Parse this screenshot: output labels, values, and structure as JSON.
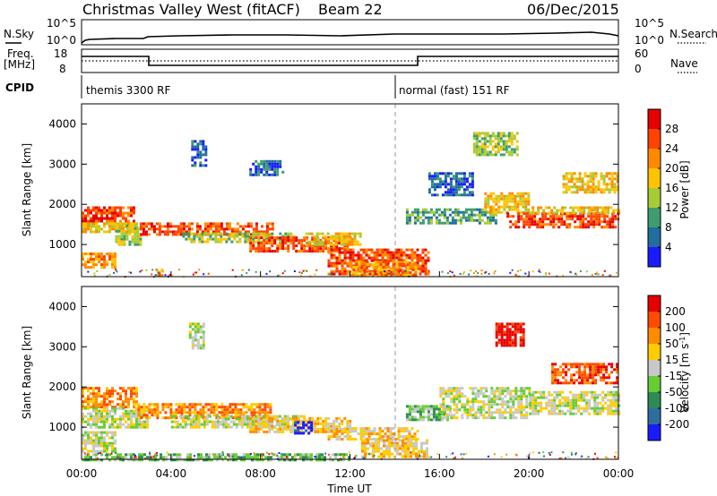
{
  "header": {
    "title": "Christmas Valley West (fitACF)",
    "beam": "Beam 22",
    "date": "06/Dec/2015"
  },
  "top_panels": {
    "nsky_label": "N.Sky",
    "nsearch_label": "N.Search",
    "left_ticks": [
      "10^5",
      "10^0"
    ],
    "right_ticks": [
      "10^5",
      "10^0"
    ],
    "freq_label_1": "Freq.",
    "freq_label_2": "[MHz]",
    "freq_ticks": [
      "18",
      "8"
    ],
    "nave_label": "Nave",
    "nave_ticks": [
      "60",
      "0"
    ],
    "cpid_label": "CPID",
    "cpid_1": "themis 3300 RF",
    "cpid_2": "normal (fast) 151 RF"
  },
  "colors": {
    "power": [
      "#1a1aff",
      "#1f6e9e",
      "#3e9c6e",
      "#a6cc33",
      "#ffc400",
      "#ff8a00",
      "#ff4200",
      "#e60000"
    ],
    "velocity": [
      "#e60000",
      "#ff4a00",
      "#ff8c00",
      "#ffcc00",
      "#c8c8c8",
      "#66cc33",
      "#2e8b57",
      "#2e6e9e",
      "#1a1aff"
    ],
    "freq_line": "#000000"
  },
  "chart_data": [
    {
      "type": "heatmap",
      "name": "power",
      "xlabel": "",
      "ylabel": "Slant Range [km]",
      "xlim": [
        0,
        24
      ],
      "ylim": [
        200,
        4500
      ],
      "yticks": [
        "4000",
        "3000",
        "2000",
        "1000"
      ],
      "colorbar_label": "Power [dB]",
      "colorbar_ticks": [
        "28",
        "24",
        "20",
        "16",
        "12",
        "8",
        "4"
      ],
      "bands": [
        {
          "t": [
            0.0,
            2.3
          ],
          "r": [
            1550,
            1950
          ],
          "level": 6
        },
        {
          "t": [
            0.0,
            2.5
          ],
          "r": [
            1300,
            1550
          ],
          "level": 4
        },
        {
          "t": [
            0.0,
            1.5
          ],
          "r": [
            400,
            800
          ],
          "level": 5
        },
        {
          "t": [
            1.5,
            2.6
          ],
          "r": [
            1000,
            1500
          ],
          "level": 3
        },
        {
          "t": [
            3.3,
            3.6
          ],
          "r": [
            250,
            400
          ],
          "level": 5
        },
        {
          "t": [
            2.6,
            8.5
          ],
          "r": [
            1250,
            1550
          ],
          "level": 6
        },
        {
          "t": [
            4.5,
            9.5
          ],
          "r": [
            1050,
            1300
          ],
          "level": 3
        },
        {
          "t": [
            7.5,
            12.0
          ],
          "r": [
            850,
            1200
          ],
          "level": 6
        },
        {
          "t": [
            10.0,
            12.5
          ],
          "r": [
            1000,
            1300
          ],
          "level": 4
        },
        {
          "t": [
            11.0,
            15.5
          ],
          "r": [
            250,
            900
          ],
          "level": 6
        },
        {
          "t": [
            12.0,
            15.0
          ],
          "r": [
            250,
            600
          ],
          "level": 5
        },
        {
          "t": [
            14.5,
            18.5
          ],
          "r": [
            1500,
            1900
          ],
          "level": 2
        },
        {
          "t": [
            15.5,
            17.5
          ],
          "r": [
            2200,
            2800
          ],
          "level": 1
        },
        {
          "t": [
            18.0,
            20.0
          ],
          "r": [
            1800,
            2300
          ],
          "level": 4
        },
        {
          "t": [
            19.0,
            24.0
          ],
          "r": [
            1400,
            1800
          ],
          "level": 6
        },
        {
          "t": [
            20.0,
            24.0
          ],
          "r": [
            1750,
            1950
          ],
          "level": 4
        },
        {
          "t": [
            21.5,
            24.0
          ],
          "r": [
            2300,
            2800
          ],
          "level": 4
        },
        {
          "t": [
            17.5,
            19.5
          ],
          "r": [
            3200,
            3800
          ],
          "level": 3
        },
        {
          "t": [
            4.9,
            5.6
          ],
          "r": [
            2950,
            3600
          ],
          "level": 1
        },
        {
          "t": [
            7.5,
            9.0
          ],
          "r": [
            2700,
            3100
          ],
          "level": 1
        }
      ]
    },
    {
      "type": "heatmap",
      "name": "velocity",
      "xlabel": "Time UT",
      "ylabel": "Slant Range [km]",
      "xlim": [
        0,
        24
      ],
      "ylim": [
        200,
        4500
      ],
      "xticks": [
        "00:00",
        "04:00",
        "08:00",
        "12:00",
        "16:00",
        "20:00",
        "00:00"
      ],
      "yticks": [
        "4000",
        "3000",
        "2000",
        "1000"
      ],
      "colorbar_label": "Velocity [m s-1]",
      "colorbar_ticks": [
        "200",
        "100",
        "50",
        "15",
        "-15",
        "-50",
        "-100",
        "-200"
      ],
      "bands": [
        {
          "t": [
            0.0,
            2.5
          ],
          "r": [
            1500,
            2000
          ],
          "level": 2
        },
        {
          "t": [
            0.0,
            3.0
          ],
          "r": [
            1000,
            1500
          ],
          "level": 4
        },
        {
          "t": [
            0.0,
            1.5
          ],
          "r": [
            400,
            900
          ],
          "level": 4
        },
        {
          "t": [
            2.5,
            8.5
          ],
          "r": [
            1250,
            1600
          ],
          "level": 2
        },
        {
          "t": [
            4.0,
            10.0
          ],
          "r": [
            1000,
            1300
          ],
          "level": 4
        },
        {
          "t": [
            7.5,
            12.0
          ],
          "r": [
            850,
            1250
          ],
          "level": 3
        },
        {
          "t": [
            9.5,
            10.3
          ],
          "r": [
            850,
            1150
          ],
          "level": 8
        },
        {
          "t": [
            11.0,
            15.0
          ],
          "r": [
            700,
            1000
          ],
          "level": 3
        },
        {
          "t": [
            12.5,
            15.5
          ],
          "r": [
            250,
            700
          ],
          "level": 3
        },
        {
          "t": [
            14.5,
            16.5
          ],
          "r": [
            1150,
            1550
          ],
          "level": 5
        },
        {
          "t": [
            16.0,
            20.0
          ],
          "r": [
            1200,
            2000
          ],
          "level": 4
        },
        {
          "t": [
            20.0,
            24.0
          ],
          "r": [
            1300,
            1900
          ],
          "level": 4
        },
        {
          "t": [
            18.5,
            19.8
          ],
          "r": [
            3000,
            3600
          ],
          "level": 0
        },
        {
          "t": [
            21.0,
            24.0
          ],
          "r": [
            2100,
            2600
          ],
          "level": 1
        },
        {
          "t": [
            4.8,
            5.5
          ],
          "r": [
            2950,
            3600
          ],
          "level": 4
        },
        {
          "t": [
            0.0,
            12.0
          ],
          "r": [
            200,
            350
          ],
          "level": 5
        }
      ]
    }
  ]
}
